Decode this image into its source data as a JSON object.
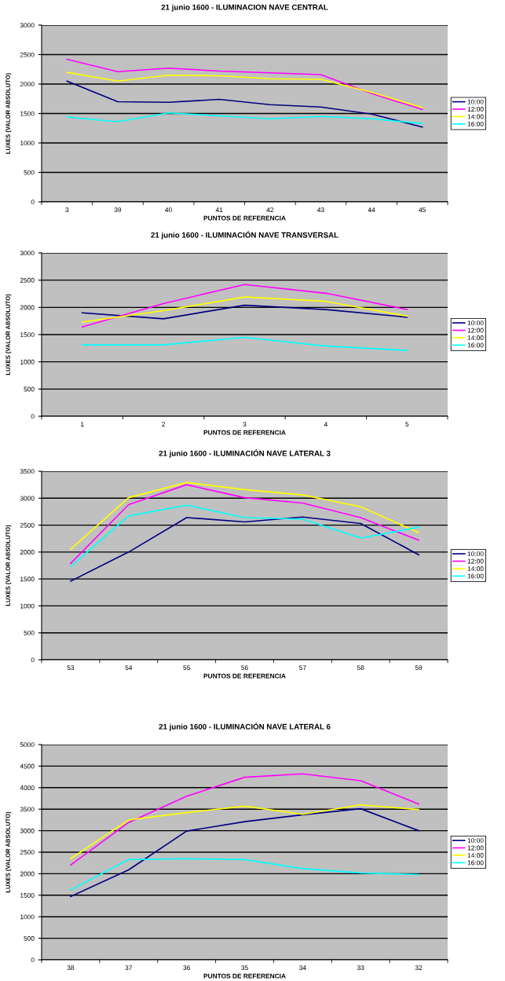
{
  "chart_data": [
    {
      "type": "line",
      "title": "21 junio 1600 - ILUMINACION NAVE CENTRAL",
      "xlabel": "PUNTOS DE REFERENCIA",
      "ylabel": "LUXES (VALOR ABSOLUTO)",
      "categories": [
        "3",
        "39",
        "40",
        "41",
        "42",
        "43",
        "44",
        "45"
      ],
      "ylim": [
        0,
        3000
      ],
      "yticks": [
        0,
        500,
        1000,
        1500,
        2000,
        2500,
        3000
      ],
      "grid": "y",
      "legend": "right",
      "marker": "none",
      "line_style": "solid",
      "series": [
        {
          "name": "10:00",
          "color": "#000080",
          "values": [
            2050,
            1700,
            1690,
            1740,
            1650,
            1610,
            1490,
            1270
          ]
        },
        {
          "name": "12:00",
          "color": "#ff00ff",
          "values": [
            2420,
            2210,
            2270,
            2220,
            2190,
            2160,
            1840,
            1570
          ]
        },
        {
          "name": "14:00",
          "color": "#ffff00",
          "values": [
            2200,
            2050,
            2150,
            2140,
            2090,
            2080,
            1860,
            1600
          ]
        },
        {
          "name": "16:00",
          "color": "#00ffff",
          "values": [
            1440,
            1360,
            1510,
            1460,
            1410,
            1450,
            1410,
            1330
          ]
        }
      ]
    },
    {
      "type": "line",
      "title": "21 junio 1600 - ILUMINACIÓN NAVE TRANSVERSAL",
      "xlabel": "PUNTOS DE REFERENCIA",
      "ylabel": "LUXES (VALOR ABSOLUTO)",
      "categories": [
        "1",
        "2",
        "3",
        "4",
        "5"
      ],
      "ylim": [
        0,
        3000
      ],
      "yticks": [
        0,
        500,
        1000,
        1500,
        2000,
        2500,
        3000
      ],
      "grid": "y",
      "legend": "right",
      "marker": "none",
      "line_style": "solid",
      "series": [
        {
          "name": "10:00",
          "color": "#000080",
          "values": [
            1900,
            1790,
            2040,
            1960,
            1820
          ]
        },
        {
          "name": "12:00",
          "color": "#ff00ff",
          "values": [
            1640,
            2070,
            2420,
            2260,
            1960
          ]
        },
        {
          "name": "14:00",
          "color": "#ffff00",
          "values": [
            1730,
            1940,
            2190,
            2110,
            1840
          ]
        },
        {
          "name": "16:00",
          "color": "#00ffff",
          "values": [
            1310,
            1310,
            1450,
            1290,
            1210
          ]
        }
      ]
    },
    {
      "type": "line",
      "title": "21 junio 1600 - ILUMINACIÓN NAVE LATERAL 3",
      "xlabel": "PUNTOS DE REFERENCIA",
      "ylabel": "LUXES (VALOR ABSOLUTO)",
      "categories": [
        "53",
        "54",
        "55",
        "56",
        "57",
        "58",
        "59"
      ],
      "ylim": [
        0,
        3500
      ],
      "yticks": [
        0,
        500,
        1000,
        1500,
        2000,
        2500,
        3000,
        3500
      ],
      "grid": "y",
      "legend": "right",
      "marker": "none",
      "line_style": "solid",
      "series": [
        {
          "name": "10:00",
          "color": "#000080",
          "values": [
            1460,
            2000,
            2640,
            2560,
            2650,
            2530,
            1950
          ]
        },
        {
          "name": "12:00",
          "color": "#ff00ff",
          "values": [
            1790,
            2880,
            3250,
            3010,
            2910,
            2640,
            2220
          ]
        },
        {
          "name": "14:00",
          "color": "#ffff00",
          "values": [
            2050,
            3010,
            3290,
            3160,
            3060,
            2840,
            2360
          ]
        },
        {
          "name": "16:00",
          "color": "#00ffff",
          "values": [
            1730,
            2670,
            2870,
            2640,
            2610,
            2260,
            2460
          ]
        }
      ]
    },
    {
      "type": "line",
      "title": "21 junio 1600 - ILUMINACIÓN NAVE LATERAL 6",
      "xlabel": "PUNTOS DE REFERENCIA",
      "ylabel": "LUXES (VALOR ABSOLUTO)",
      "categories": [
        "38",
        "37",
        "36",
        "35",
        "34",
        "33",
        "32"
      ],
      "ylim": [
        0,
        5000
      ],
      "yticks": [
        0,
        500,
        1000,
        1500,
        2000,
        2500,
        3000,
        3500,
        4000,
        4500,
        5000
      ],
      "grid": "y",
      "legend": "right",
      "marker": "none",
      "line_style": "solid",
      "series": [
        {
          "name": "10:00",
          "color": "#000080",
          "values": [
            1470,
            2090,
            2990,
            3210,
            3370,
            3510,
            3000
          ]
        },
        {
          "name": "12:00",
          "color": "#ff00ff",
          "values": [
            2200,
            3190,
            3800,
            4240,
            4320,
            4160,
            3620
          ]
        },
        {
          "name": "14:00",
          "color": "#ffff00",
          "values": [
            2350,
            3250,
            3420,
            3570,
            3380,
            3600,
            3490
          ]
        },
        {
          "name": "16:00",
          "color": "#00ffff",
          "values": [
            1620,
            2330,
            2350,
            2330,
            2120,
            2020,
            1980
          ]
        }
      ]
    }
  ]
}
